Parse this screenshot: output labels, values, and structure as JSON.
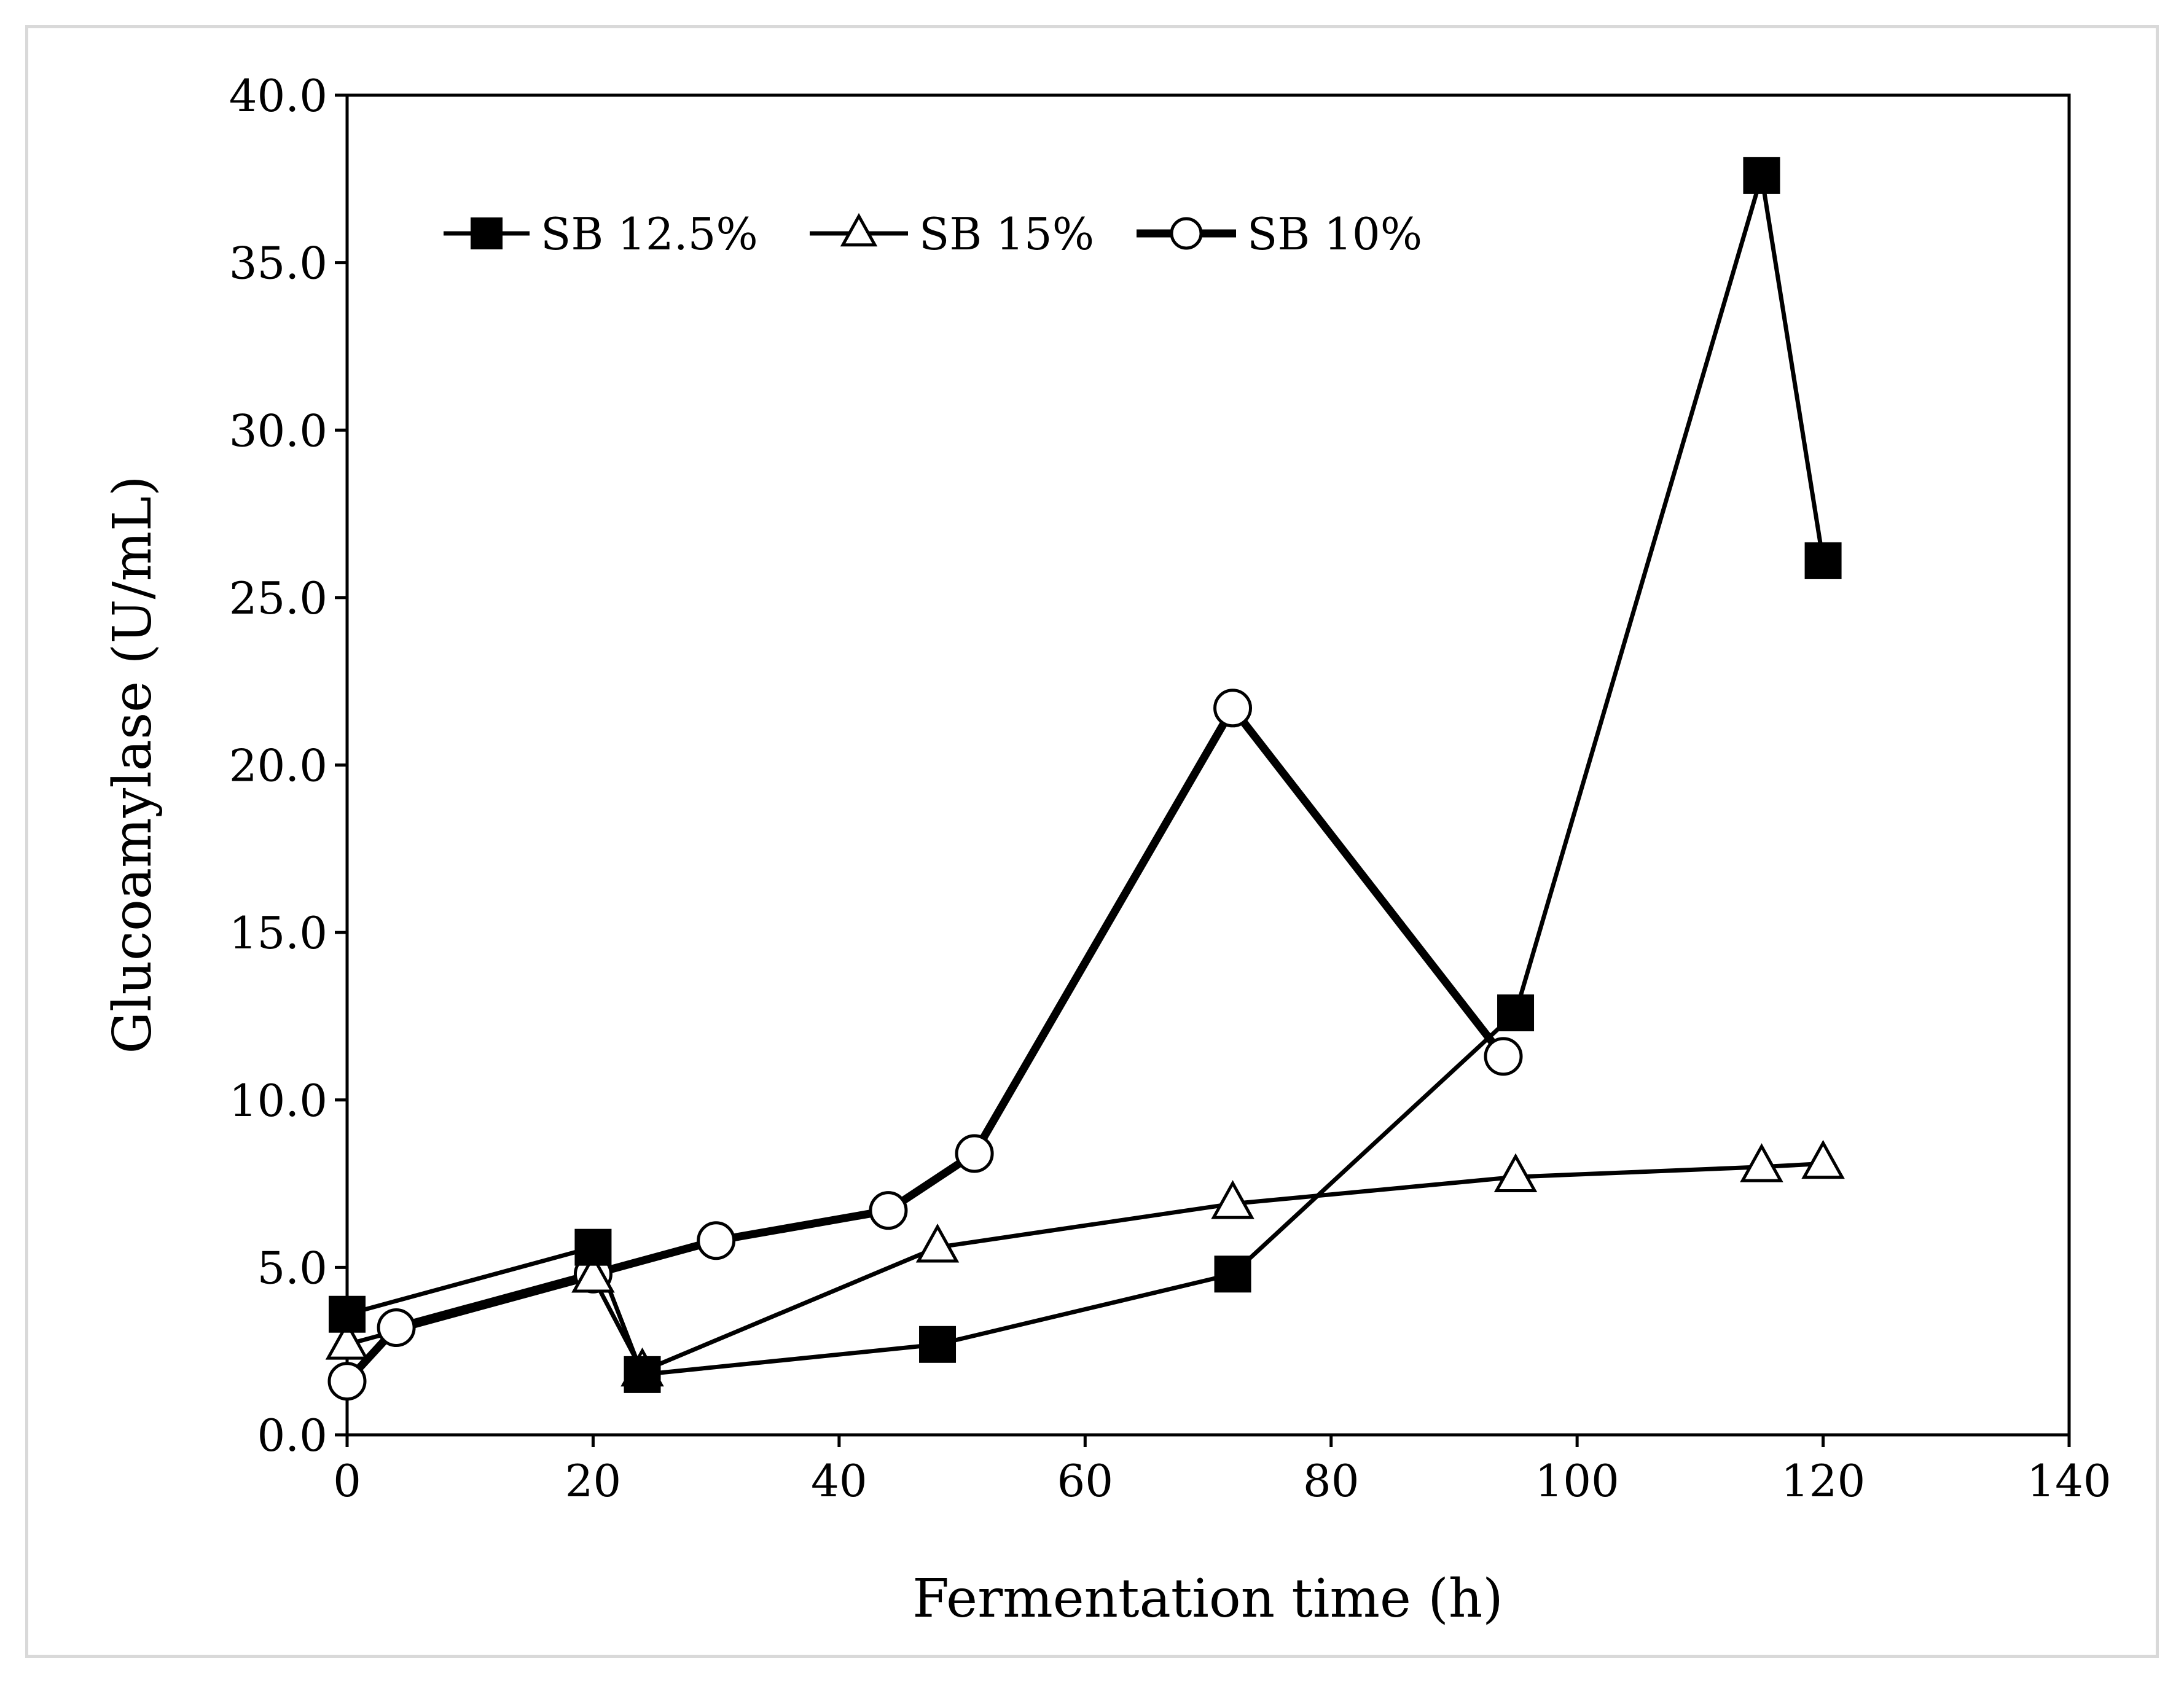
{
  "chart_data": {
    "type": "line",
    "title": "",
    "xlabel": "Fermentation time (h)",
    "ylabel": "Glucoamylase (U/mL)",
    "xlim": [
      0,
      140
    ],
    "ylim": [
      0,
      40
    ],
    "xticks": [
      0,
      20,
      40,
      60,
      80,
      100,
      120,
      140
    ],
    "yticks": [
      0,
      5,
      10,
      15,
      20,
      25,
      30,
      35,
      40
    ],
    "xtick_labels": [
      "0",
      "20",
      "40",
      "60",
      "80",
      "100",
      "120",
      "140"
    ],
    "ytick_labels": [
      "0.0",
      "5.0",
      "10.0",
      "15.0",
      "20.0",
      "25.0",
      "30.0",
      "35.0",
      "40.0"
    ],
    "grid": false,
    "legend_position": "top-left",
    "series": [
      {
        "name": "SB 12.5%",
        "marker": "filled-square",
        "color": "#000000",
        "x": [
          0,
          20,
          24,
          48,
          72,
          95,
          115,
          120
        ],
        "y": [
          3.6,
          5.6,
          1.8,
          2.7,
          4.8,
          12.6,
          37.6,
          26.1
        ]
      },
      {
        "name": "SB 15%",
        "marker": "open-triangle",
        "color": "#000000",
        "x": [
          0,
          20,
          24,
          48,
          72,
          95,
          115,
          120
        ],
        "y": [
          2.7,
          4.7,
          1.9,
          5.6,
          6.9,
          7.7,
          8.0,
          8.1
        ]
      },
      {
        "name": "SB 10%",
        "marker": "open-circle",
        "color": "#000000",
        "x": [
          0,
          4,
          20,
          30,
          44,
          51,
          72,
          94
        ],
        "y": [
          1.6,
          3.2,
          4.8,
          5.8,
          6.7,
          8.4,
          21.7,
          11.3
        ]
      }
    ]
  }
}
